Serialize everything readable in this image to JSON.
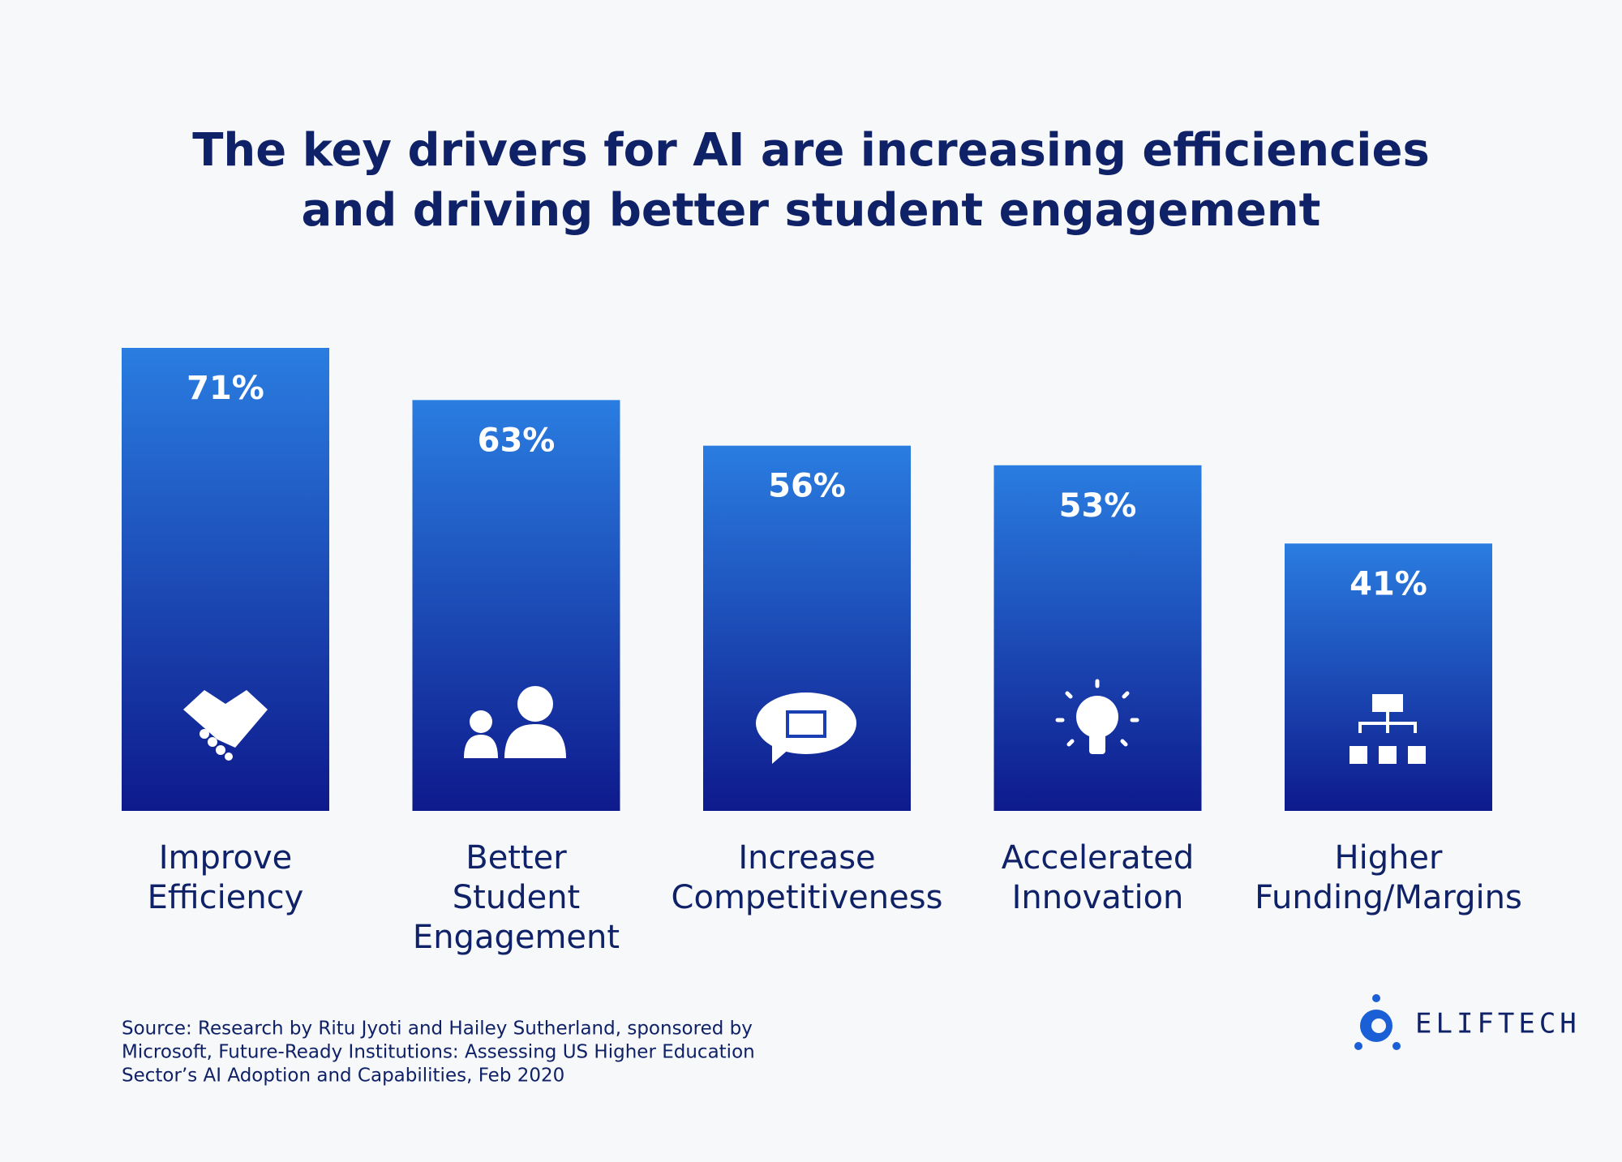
{
  "chart_data": {
    "type": "bar",
    "title": [
      "The key drivers for AI are increasing efficiencies",
      "and driving better student engagement"
    ],
    "categories": [
      "Improve Efficiency",
      "Better Student Engagement",
      "Increase Competitiveness",
      "Accelerated Innovation",
      "Higher Funding/Margins"
    ],
    "values": [
      71,
      63,
      56,
      53,
      41
    ],
    "value_labels": [
      "71%",
      "63%",
      "56%",
      "53%",
      "41%"
    ],
    "color": [
      "#2a7de1",
      "#0e1a8c"
    ],
    "source": [
      "Source: Research by Ritu Jyoti and Hailey Sutherland, sponsored by",
      "Microsoft, Future-Ready Institutions: Assessing US Higher Education",
      "Sector’s AI Adoption and Capabilities, Feb 2020"
    ],
    "logo": "ELIFTECH"
  }
}
